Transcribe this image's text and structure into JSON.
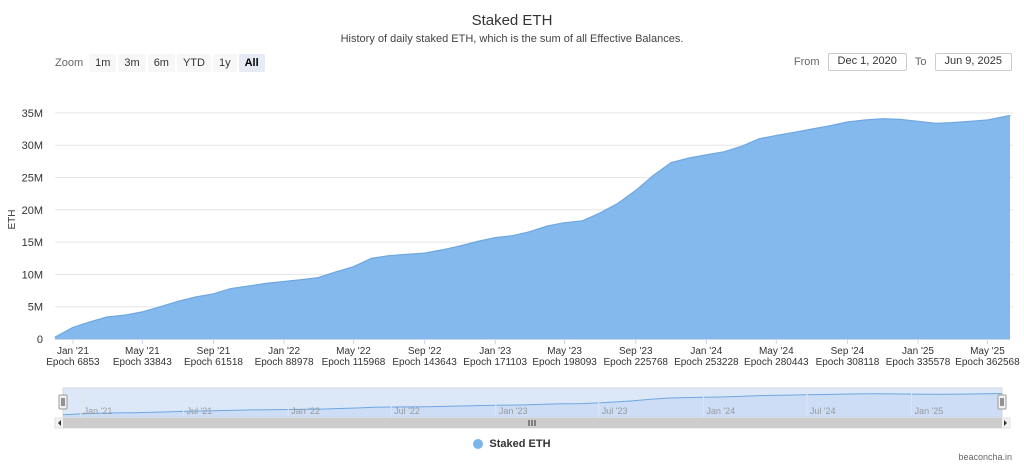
{
  "chart_data": {
    "type": "area",
    "title": "Staked ETH",
    "subtitle": "History of daily staked ETH, which is the sum of all Effective Balances.",
    "ylabel": "ETH",
    "ylim": [
      0,
      37000000
    ],
    "yticks": [
      0,
      5000000,
      10000000,
      15000000,
      20000000,
      25000000,
      30000000,
      35000000
    ],
    "ytick_labels": [
      "0",
      "5M",
      "10M",
      "15M",
      "20M",
      "25M",
      "30M",
      "35M"
    ],
    "xlim": [
      "2020-12-01",
      "2025-06-09"
    ],
    "xticks": [
      {
        "date": "2021-01-01",
        "label": "Jan '21",
        "epoch": "Epoch 6853"
      },
      {
        "date": "2021-05-01",
        "label": "May '21",
        "epoch": "Epoch 33843"
      },
      {
        "date": "2021-09-01",
        "label": "Sep '21",
        "epoch": "Epoch 61518"
      },
      {
        "date": "2022-01-01",
        "label": "Jan '22",
        "epoch": "Epoch 88978"
      },
      {
        "date": "2022-05-01",
        "label": "May '22",
        "epoch": "Epoch 115968"
      },
      {
        "date": "2022-09-01",
        "label": "Sep '22",
        "epoch": "Epoch 143643"
      },
      {
        "date": "2023-01-01",
        "label": "Jan '23",
        "epoch": "Epoch 171103"
      },
      {
        "date": "2023-05-01",
        "label": "May '23",
        "epoch": "Epoch 198093"
      },
      {
        "date": "2023-09-01",
        "label": "Sep '23",
        "epoch": "Epoch 225768"
      },
      {
        "date": "2024-01-01",
        "label": "Jan '24",
        "epoch": "Epoch 253228"
      },
      {
        "date": "2024-05-01",
        "label": "May '24",
        "epoch": "Epoch 280443"
      },
      {
        "date": "2024-09-01",
        "label": "Sep '24",
        "epoch": "Epoch 308118"
      },
      {
        "date": "2025-01-01",
        "label": "Jan '25",
        "epoch": "Epoch 335578"
      },
      {
        "date": "2025-05-01",
        "label": "May '25",
        "epoch": "Epoch 362568"
      }
    ],
    "series": [
      {
        "name": "Staked ETH",
        "color": "#7cb5ec",
        "x": [
          "2020-12-01",
          "2021-01-01",
          "2021-02-01",
          "2021-03-01",
          "2021-04-01",
          "2021-05-01",
          "2021-06-01",
          "2021-07-01",
          "2021-08-01",
          "2021-09-01",
          "2021-10-01",
          "2021-11-01",
          "2021-12-01",
          "2022-01-01",
          "2022-02-01",
          "2022-03-01",
          "2022-04-01",
          "2022-05-01",
          "2022-06-01",
          "2022-07-01",
          "2022-08-01",
          "2022-09-01",
          "2022-10-01",
          "2022-11-01",
          "2022-12-01",
          "2023-01-01",
          "2023-02-01",
          "2023-03-01",
          "2023-04-01",
          "2023-05-01",
          "2023-06-01",
          "2023-07-01",
          "2023-08-01",
          "2023-09-01",
          "2023-10-01",
          "2023-11-01",
          "2023-12-01",
          "2024-01-01",
          "2024-02-01",
          "2024-03-01",
          "2024-04-01",
          "2024-05-01",
          "2024-06-01",
          "2024-07-01",
          "2024-08-01",
          "2024-09-01",
          "2024-10-01",
          "2024-11-01",
          "2024-12-01",
          "2025-01-01",
          "2025-02-01",
          "2025-03-01",
          "2025-04-01",
          "2025-05-01",
          "2025-06-09"
        ],
        "values": [
          300000,
          1800000,
          2700000,
          3400000,
          3700000,
          4200000,
          5000000,
          5800000,
          6500000,
          7000000,
          7800000,
          8200000,
          8600000,
          8900000,
          9200000,
          9500000,
          10400000,
          11200000,
          12500000,
          12900000,
          13100000,
          13300000,
          13800000,
          14400000,
          15100000,
          15700000,
          16000000,
          16600000,
          17500000,
          18000000,
          18300000,
          19500000,
          21000000,
          23000000,
          25300000,
          27300000,
          28000000,
          28500000,
          29000000,
          29800000,
          31000000,
          31500000,
          32000000,
          32500000,
          33000000,
          33600000,
          33900000,
          34100000,
          34000000,
          33700000,
          33400000,
          33500000,
          33700000,
          33900000,
          34600000
        ]
      }
    ],
    "navigator": {
      "labels": [
        "Jan '21",
        "Jul '21",
        "Jan '22",
        "Jul '22",
        "Jan '23",
        "Jul '23",
        "Jan '24",
        "Jul '24",
        "Jan '25"
      ],
      "dates": [
        "2021-01-01",
        "2021-07-01",
        "2022-01-01",
        "2022-07-01",
        "2023-01-01",
        "2023-07-01",
        "2024-01-01",
        "2024-07-01",
        "2025-01-01"
      ]
    },
    "legend": {
      "position": "bottom-center"
    },
    "grid": true
  },
  "controls": {
    "zoom_label": "Zoom",
    "zoom_options": [
      "1m",
      "3m",
      "6m",
      "YTD",
      "1y",
      "All"
    ],
    "zoom_selected": "All",
    "from_label": "From",
    "from_value": "Dec 1, 2020",
    "to_label": "To",
    "to_value": "Jun 9, 2025"
  },
  "credit": "beaconcha.in"
}
